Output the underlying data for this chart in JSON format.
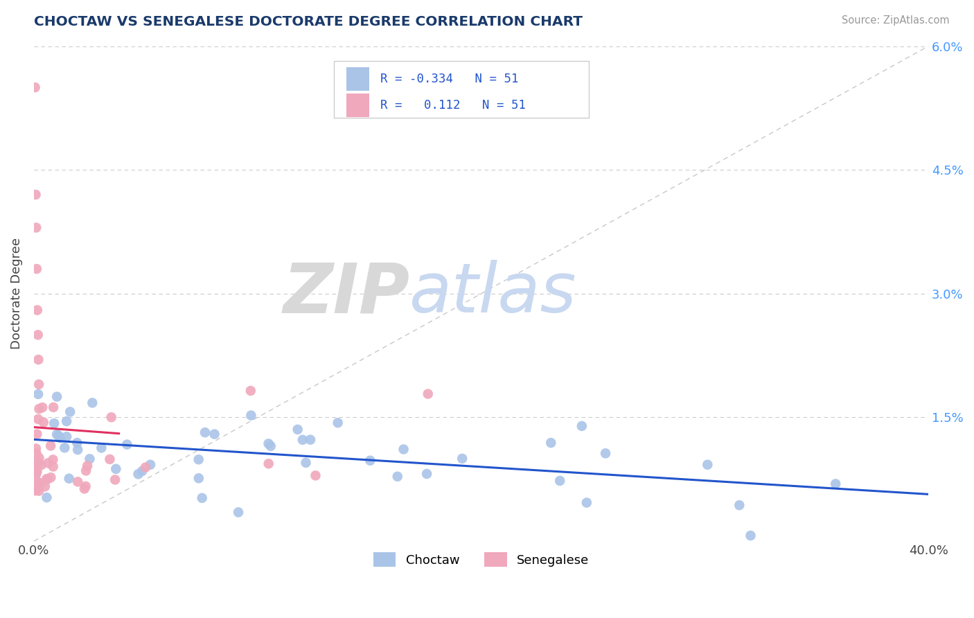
{
  "title": "CHOCTAW VS SENEGALESE DOCTORATE DEGREE CORRELATION CHART",
  "source": "Source: ZipAtlas.com",
  "ylabel": "Doctorate Degree",
  "xlim": [
    0.0,
    40.0
  ],
  "ylim": [
    0.0,
    6.0
  ],
  "ytick_vals": [
    0.0,
    1.5,
    3.0,
    4.5,
    6.0
  ],
  "legend_r_choctaw": "R = -0.334",
  "legend_r_senegalese": "R =  0.112",
  "legend_n": "N = 51",
  "choctaw_color": "#aac4e8",
  "senegalese_color": "#f0a8bc",
  "choctaw_line_color": "#2255cc",
  "senegalese_line_color": "#e03060",
  "ref_line_color": "#c8c8c8",
  "grid_color": "#cccccc",
  "background_color": "#ffffff",
  "ytick_color": "#4499ff",
  "title_color": "#1a3a6b",
  "watermark_zip_color": "#d8d8d8",
  "watermark_atlas_color": "#c8d8f0"
}
